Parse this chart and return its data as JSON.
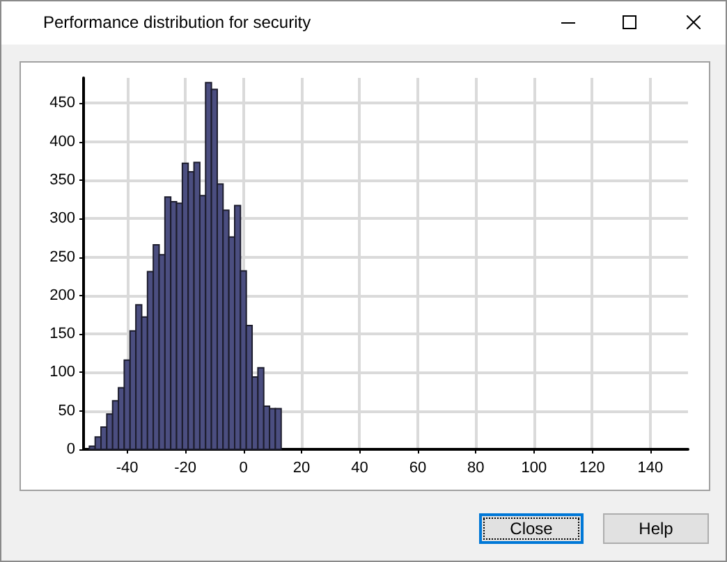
{
  "chart_data": {
    "type": "histogram",
    "title": "Performance distribution for security",
    "bins": [
      -53,
      -51,
      -49,
      -47,
      -45,
      -43,
      -41,
      -39,
      -37,
      -35,
      -33,
      -31,
      -29,
      -27,
      -25,
      -23,
      -21,
      -19,
      -17,
      -15,
      -13,
      -11,
      -9,
      -7,
      -5,
      -3,
      -1,
      1,
      3,
      5,
      7,
      9,
      11,
      13
    ],
    "values": [
      4,
      16,
      29,
      46,
      63,
      80,
      116,
      154,
      188,
      172,
      231,
      266,
      253,
      328,
      322,
      320,
      372,
      361,
      373,
      330,
      477,
      468,
      345,
      311,
      276,
      317,
      232,
      161,
      94,
      106,
      56,
      53,
      53
    ],
    "color": "#4b4e80",
    "xlim": [
      -55,
      153
    ],
    "xticks": [
      -40,
      -20,
      0,
      20,
      40,
      60,
      80,
      100,
      120,
      140
    ],
    "ylim": [
      0,
      483
    ],
    "yticks": [
      0,
      50,
      100,
      150,
      200,
      250,
      300,
      350,
      400,
      450
    ],
    "grid": true,
    "annotations": [
      "Close",
      "Help"
    ]
  }
}
